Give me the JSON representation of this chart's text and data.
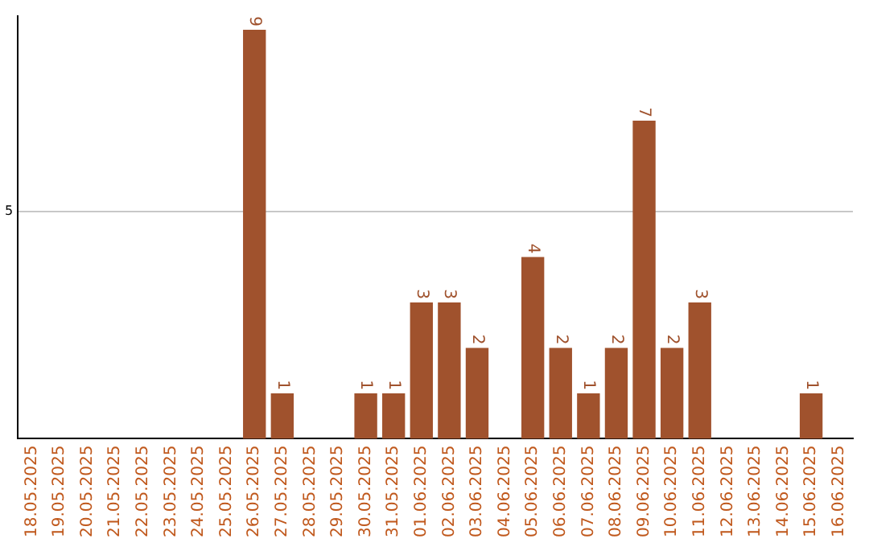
{
  "chart_data": {
    "type": "bar",
    "categories": [
      "18.05.2025",
      "19.05.2025",
      "20.05.2025",
      "21.05.2025",
      "22.05.2025",
      "23.05.2025",
      "24.05.2025",
      "25.05.2025",
      "26.05.2025",
      "27.05.2025",
      "28.05.2025",
      "29.05.2025",
      "30.05.2025",
      "31.05.2025",
      "01.06.2025",
      "02.06.2025",
      "03.06.2025",
      "04.06.2025",
      "05.06.2025",
      "06.06.2025",
      "07.06.2025",
      "08.06.2025",
      "09.06.2025",
      "10.06.2025",
      "11.06.2025",
      "12.06.2025",
      "13.06.2025",
      "14.06.2025",
      "15.06.2025",
      "16.06.2025"
    ],
    "values": [
      0,
      0,
      0,
      0,
      0,
      0,
      0,
      0,
      9,
      1,
      0,
      0,
      1,
      1,
      3,
      3,
      2,
      0,
      4,
      2,
      1,
      2,
      7,
      2,
      3,
      0,
      0,
      0,
      1,
      0
    ],
    "value_labels": [
      null,
      null,
      null,
      null,
      null,
      null,
      null,
      null,
      "9",
      "1",
      null,
      null,
      "1",
      "1",
      "3",
      "3",
      "2",
      null,
      "4",
      "2",
      "1",
      "2",
      "7",
      "2",
      "3",
      null,
      null,
      null,
      "1",
      null
    ],
    "color": "#a0522d",
    "ylim": [
      0,
      9.3
    ],
    "yticks": [
      5
    ],
    "grid": "y"
  }
}
